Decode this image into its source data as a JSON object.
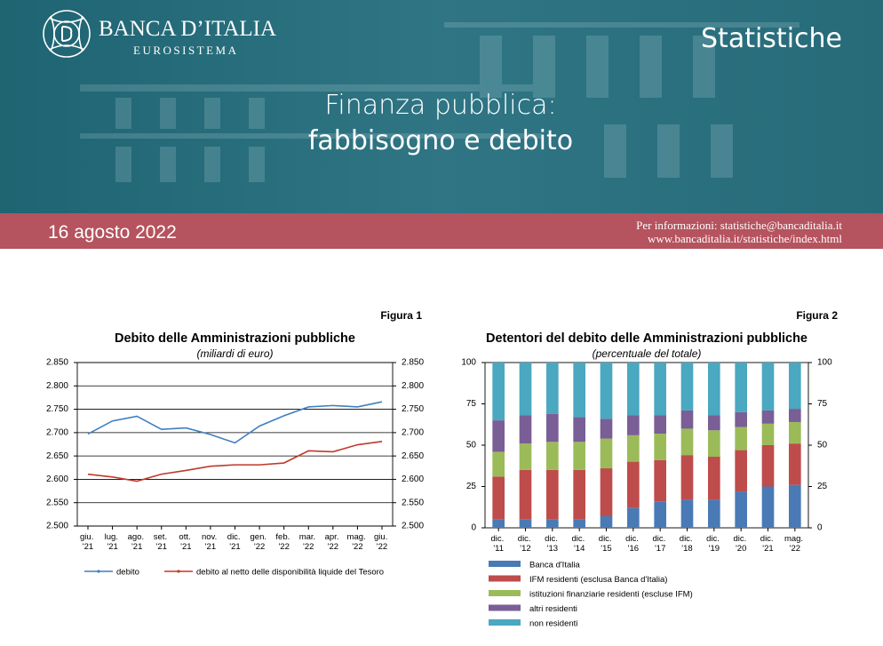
{
  "header": {
    "logo_name": "BANCA D’ITALIA",
    "logo_sub": "EUROSISTEMA",
    "section": "Statistiche",
    "title_line1": "Finanza pubblica:",
    "title_line2": "fabbisogno e debito",
    "date": "16 agosto 2022",
    "info1": "Per informazioni: statistiche@bancaditalia.it",
    "info2": "www.bancaditalia.it/statistiche/index.html"
  },
  "chart_data": [
    {
      "type": "line",
      "figure": "Figura 1",
      "title": "Debito delle Amministrazioni pubbliche",
      "subtitle": "(miliardi di euro)",
      "categories": [
        "giu. '21",
        "lug. '21",
        "ago. '21",
        "set. '21",
        "ott. '21",
        "nov. '21",
        "dic. '21",
        "gen. '22",
        "feb. '22",
        "mar. '22",
        "apr. '22",
        "mag. '22",
        "giu. '22"
      ],
      "series": [
        {
          "name": "debito",
          "color": "#3f7fc0",
          "values": [
            2697,
            2725,
            2735,
            2707,
            2710,
            2696,
            2678,
            2714,
            2736,
            2755,
            2758,
            2755,
            2766
          ]
        },
        {
          "name": "debito al netto delle disponibilità liquide del Tesoro",
          "color": "#c0392b",
          "values": [
            2611,
            2605,
            2596,
            2611,
            2619,
            2628,
            2631,
            2631,
            2635,
            2661,
            2659,
            2674,
            2681
          ]
        }
      ],
      "ylim": [
        2500,
        2850
      ],
      "yticks": [
        {
          "value": 2500,
          "label": "2.500"
        },
        {
          "value": 2550,
          "label": "2.550"
        },
        {
          "value": 2600,
          "label": "2.600"
        },
        {
          "value": 2650,
          "label": "2.650"
        },
        {
          "value": 2700,
          "label": "2.700"
        },
        {
          "value": 2750,
          "label": "2.750"
        },
        {
          "value": 2800,
          "label": "2.800"
        },
        {
          "value": 2850,
          "label": "2.850"
        }
      ],
      "grid": true,
      "legend": "bottom"
    },
    {
      "type": "stacked-bar",
      "figure": "Figura 2",
      "title": "Detentori del debito delle Amministrazioni pubbliche",
      "subtitle": "(percentuale del totale)",
      "categories": [
        "dic. '11",
        "dic. '12",
        "dic. '13",
        "dic. '14",
        "dic. '15",
        "dic. '16",
        "dic. '17",
        "dic. '18",
        "dic. '19",
        "dic. '20",
        "dic. '21",
        "mag. '22"
      ],
      "series": [
        {
          "name": "Banca d'Italia",
          "color": "#4a7ab5",
          "values": [
            5,
            5,
            5,
            5,
            7,
            12,
            16,
            17,
            17,
            22,
            25,
            26
          ]
        },
        {
          "name": "IFM residenti (esclusa Banca d'Italia)",
          "color": "#bd4c4b",
          "values": [
            26,
            30,
            30,
            30,
            29,
            28,
            25,
            27,
            26,
            25,
            25,
            25
          ]
        },
        {
          "name": "istituzioni finanziarie residenti (escluse IFM)",
          "color": "#9bbb59",
          "values": [
            15,
            16,
            17,
            17,
            18,
            16,
            16,
            16,
            16,
            14,
            13,
            13
          ]
        },
        {
          "name": "altri residenti",
          "color": "#7a5e96",
          "values": [
            19,
            17,
            17,
            15,
            12,
            12,
            11,
            11,
            9,
            9,
            8,
            8
          ]
        },
        {
          "name": "non residenti",
          "color": "#4aa8c0",
          "values": [
            35,
            32,
            31,
            33,
            34,
            32,
            32,
            29,
            32,
            30,
            29,
            28
          ]
        }
      ],
      "ylim": [
        0,
        100
      ],
      "yticks": [
        0,
        25,
        50,
        75,
        100
      ],
      "grid": false,
      "legend": "bottom"
    }
  ]
}
